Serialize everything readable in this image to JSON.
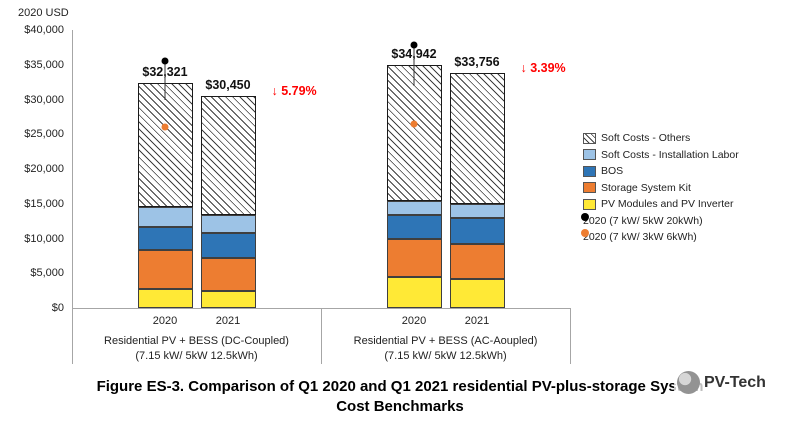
{
  "caption": {
    "line1": "Figure ES-3. Comparison of Q1 2020 and Q1 2021 residential PV-plus-storage System",
    "line2": "Cost Benchmarks"
  },
  "watermark": "PV-Tech",
  "chart_data": {
    "type": "bar",
    "stacked": true,
    "title": "Figure ES-3. Comparison of Q1 2020 and Q1 2021 residential PV-plus-storage System Cost Benchmarks",
    "ylabel": "2020 USD",
    "ylim": [
      0,
      40000
    ],
    "ytick_step": 5000,
    "ytick_labels": [
      "$0",
      "$5,000",
      "$10,000",
      "$15,000",
      "$20,000",
      "$25,000",
      "$30,000",
      "$35,000",
      "$40,000"
    ],
    "grid": false,
    "legend_position": "right",
    "series_order": [
      "PV Modules and PV Inverter",
      "Storage System Kit",
      "BOS",
      "Soft Costs - Installation Labor",
      "Soft Costs - Others"
    ],
    "series_colors": {
      "PV Modules and PV Inverter": "#FFE936",
      "Storage System Kit": "#ED7D31",
      "BOS": "#2E75B6",
      "Soft Costs - Installation Labor": "#9DC3E6",
      "Soft Costs - Others": "hatch"
    },
    "groups": [
      {
        "label1": "Residential PV + BESS (DC-Coupled)",
        "label2": "(7.15 kW/ 5kW 12.5kWh)",
        "delta_label": "↓ 5.79%",
        "bars": [
          {
            "year": "2020",
            "total": 32321,
            "total_label": "$32,321",
            "segments": [
              2800,
              5500,
              3400,
              2800,
              17821
            ]
          },
          {
            "year": "2021",
            "total": 30450,
            "total_label": "$30,450",
            "segments": [
              2500,
              4700,
              3600,
              2600,
              17050
            ]
          }
        ],
        "markers": [
          {
            "label": "2020 (7 kW/ 5kW 20kWh)",
            "value": 35600,
            "style": "black",
            "on_bar": "2020",
            "whisker_to": 29900
          },
          {
            "label": "2020 (7 kW/ 3kW 6kWh)",
            "value": 26000,
            "style": "orange",
            "on_bar": "2020"
          }
        ]
      },
      {
        "label1": "Residential PV + BESS (AC-Aoupled)",
        "label2": "(7.15 kW/ 5kW 12.5kWh)",
        "delta_label": "↓ 3.39%",
        "bars": [
          {
            "year": "2020",
            "total": 34942,
            "total_label": "$34,942",
            "segments": [
              4400,
              5500,
              3500,
              2000,
              19542
            ]
          },
          {
            "year": "2021",
            "total": 33756,
            "total_label": "$33,756",
            "segments": [
              4200,
              5000,
              3700,
              2100,
              18756
            ]
          }
        ],
        "markers": [
          {
            "label": "2020 (7 kW/ 5kW 20kWh)",
            "value": 37800,
            "style": "black",
            "on_bar": "2020",
            "whisker_to": 32000
          },
          {
            "label": "2020 (7 kW/ 3kW 6kWh)",
            "value": 26500,
            "style": "orange",
            "on_bar": "2020"
          }
        ]
      }
    ],
    "legend": [
      {
        "label": "Soft Costs - Others",
        "swatch": "hatch"
      },
      {
        "label": "Soft Costs - Installation Labor",
        "swatch": "#9DC3E6"
      },
      {
        "label": "BOS",
        "swatch": "#2E75B6"
      },
      {
        "label": "Storage System Kit",
        "swatch": "#ED7D31"
      },
      {
        "label": "PV Modules and PV Inverter",
        "swatch": "#FFE936"
      },
      {
        "label": "2020 (7 kW/ 5kW 20kWh)",
        "swatch": "dot-black"
      },
      {
        "label": "2020 (7 kW/ 3kW 6kWh)",
        "swatch": "dot-orange"
      }
    ]
  }
}
